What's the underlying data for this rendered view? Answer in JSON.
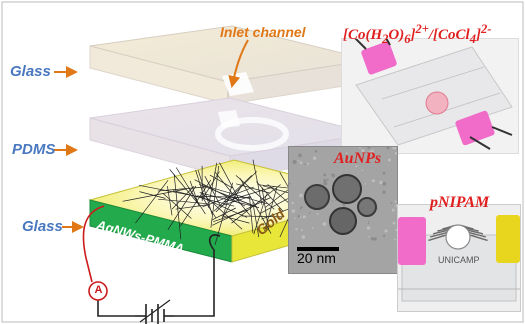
{
  "labels": {
    "inlet_channel": "Inlet channel",
    "glass_top": "Glass",
    "pdms": "PDMS",
    "glass_bottom": "Glass",
    "gold": "Gold",
    "agnws": "AgNWs-PMMA",
    "ammeter": "A"
  },
  "photos": {
    "cobalt": {
      "title_html": "[Co(H<sub>2</sub>O)<sub>6</sub>]<sup>2+</sup>/[CoCl<sub>4</sub>]<sup>2-</sup>",
      "title_text": "[Co(H2O)6]2+/[CoCl4]2-"
    },
    "tem": {
      "title": "AuNPs",
      "scale_bar": "20 nm"
    },
    "pnipam": {
      "title": "pNIPAM",
      "stamp": "UNICAMP"
    }
  },
  "colors": {
    "arrow_orange": "#e07818",
    "layer_blue": "#4a78c0",
    "label_red": "#e02020",
    "gold_yellow": "#f2ee3c",
    "agnws_green": "#22a84a",
    "clip_pink": "#f06cc8"
  }
}
